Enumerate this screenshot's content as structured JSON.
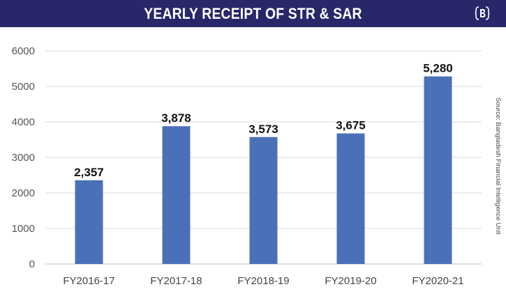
{
  "header": {
    "title": "YEARLY RECEIPT OF STR & SAR",
    "background": "#28276a"
  },
  "logo": {
    "icon": "newspaper-logo-icon"
  },
  "source_note": "Source: Bangladesh Financial Intelligence Unit",
  "chart_data": {
    "type": "bar",
    "title": "YEARLY RECEIPT OF STR & SAR",
    "categories": [
      "FY2016-17",
      "FY2017-18",
      "FY2018-19",
      "FY2019-20",
      "FY2020-21"
    ],
    "values": [
      2357,
      3878,
      3573,
      3675,
      5280
    ],
    "data_labels": [
      "2,357",
      "3,878",
      "3,573",
      "3,675",
      "5,280"
    ],
    "ylim": [
      0,
      6000
    ],
    "yticks": [
      0,
      1000,
      2000,
      3000,
      4000,
      5000,
      6000
    ],
    "grid": true,
    "legend": "none",
    "xlabel": "",
    "ylabel": "",
    "bar_color": "#4a70b8"
  }
}
